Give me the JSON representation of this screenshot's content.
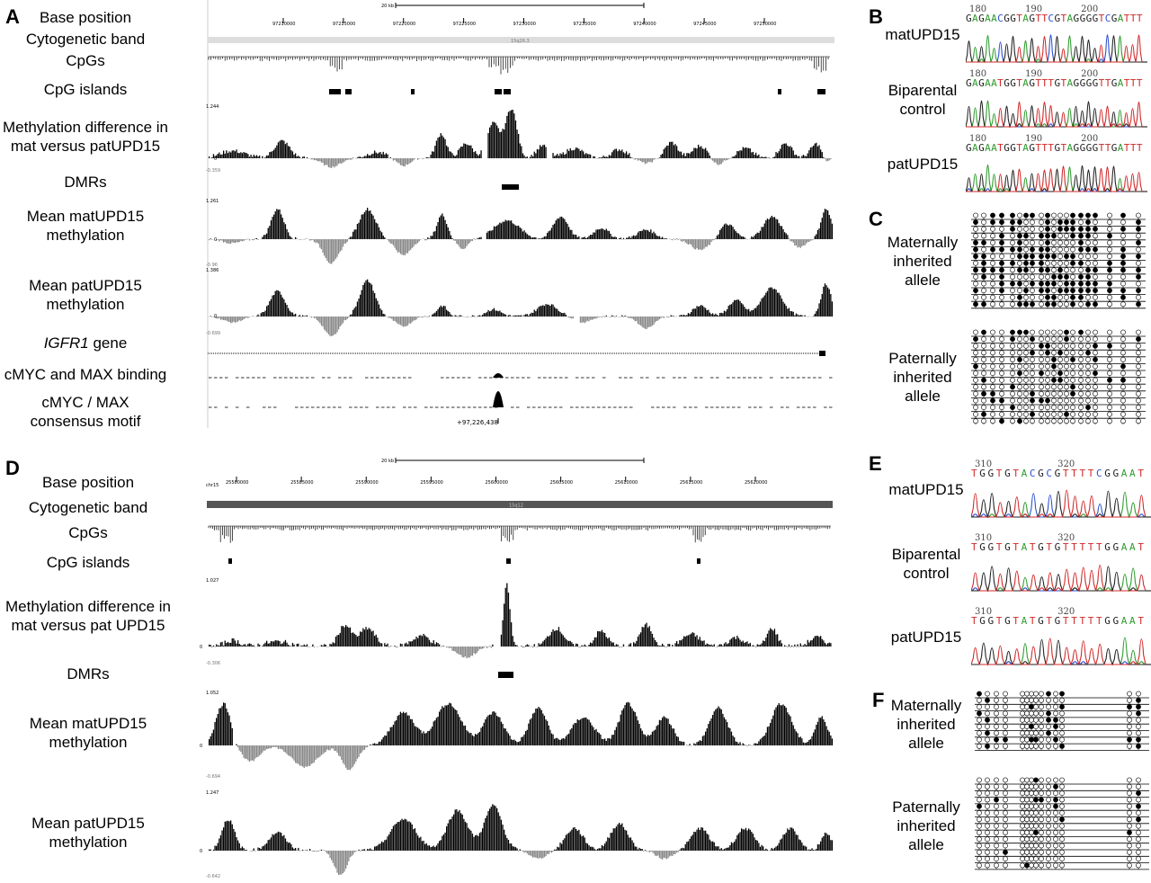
{
  "panels": {
    "A": "A",
    "B": "B",
    "C": "C",
    "D": "D",
    "E": "E",
    "F": "F"
  },
  "browserA": {
    "labels": {
      "base": "Base position",
      "band": "Cytogenetic band",
      "cpgs": "CpGs",
      "islands": "CpG islands",
      "diff1": "Methylation difference in",
      "diff2": "mat versus patUPD15",
      "dmrs": "DMRs",
      "mat1": "Mean matUPD15",
      "mat2": "methylation",
      "pat1": "Mean patUPD15",
      "pat2": "methylation",
      "gene_italic": "IGFR1",
      "gene_rest": " gene",
      "cmyc": "cMYC and MAX binding",
      "motif1": "cMYC / MAX",
      "motif2": "consensus motif"
    },
    "scale": "20 kb",
    "band_name": "15q26.3",
    "positions": [
      "97210000",
      "97215000",
      "97220000",
      "97225000",
      "97230000",
      "97235000",
      "97240000",
      "97245000",
      "97250000"
    ],
    "diff_max": "1.244",
    "diff_zero": "0",
    "diff_min": "-0.359",
    "mat_max": "1.261",
    "mat_zero": "0",
    "mat_min": "-0.96",
    "pat_max": "1.386",
    "pat_zero": "0",
    "pat_min": "-0.699",
    "coord": "+97,226,438"
  },
  "browserD": {
    "labels": {
      "base": "Base position",
      "band": "Cytogenetic band",
      "cpgs": "CpGs",
      "islands": "CpG islands",
      "diff1": "Methylation difference in",
      "diff2": "mat versus pat UPD15",
      "dmrs": "DMRs",
      "mat1": "Mean matUPD15",
      "mat2": "methylation",
      "pat1": "Mean patUPD15",
      "pat2": "methylation"
    },
    "scale": "20 kb",
    "chrom": "chr15",
    "band_name": "15q12",
    "positions": [
      "25580000",
      "25585000",
      "25590000",
      "25595000",
      "25600000",
      "25605000",
      "25610000",
      "25615000",
      "25620000"
    ],
    "diff_max": "1.027",
    "diff_zero": "0",
    "diff_min": "-0.306",
    "mat_max": "1.052",
    "mat_zero": "0",
    "mat_min": "-0.694",
    "pat_max": "1.247",
    "pat_zero": "0",
    "pat_min": "-0.642"
  },
  "panelB": {
    "traces": [
      {
        "label1": "matUPD15",
        "label2": "",
        "seq": "GAGAACGGTAGTTCGTAGGGGTCGATTT",
        "nums": [
          "180",
          "190",
          "200"
        ]
      },
      {
        "label1": "Biparental",
        "label2": "control",
        "seq": "GAGAATGGTAGTTTGTAGGGGTTGATTT",
        "nums": [
          "180",
          "190",
          "200"
        ]
      },
      {
        "label1": "patUPD15",
        "label2": "",
        "seq": "GAGAATGGTAGTTTGTAGGGGTTGATTT",
        "nums": [
          "180",
          "190",
          "200"
        ]
      }
    ]
  },
  "panelC": {
    "mat": [
      "Maternally",
      "inherited",
      "allele"
    ],
    "pat": [
      "Paternally",
      "inherited",
      "allele"
    ]
  },
  "panelE": {
    "traces": [
      {
        "label1": "matUPD15",
        "label2": "",
        "seq": "TGGTGTACGCGTTTTCGGAAT",
        "nums": [
          "310",
          "320"
        ]
      },
      {
        "label1": "Biparental",
        "label2": "control",
        "seq": "TGGTGTATGTGTTTTTGGAAT",
        "nums": [
          "310",
          "320"
        ]
      },
      {
        "label1": "patUPD15",
        "label2": "",
        "seq": "TGGTGTATGTGTTTTTGGAAT",
        "nums": [
          "310",
          "320"
        ]
      }
    ]
  },
  "panelF": {
    "mat": [
      "Maternally",
      "inherited",
      "allele"
    ],
    "pat": [
      "Paternally",
      "inherited",
      "allele"
    ]
  },
  "colors": {
    "bar": "#000000",
    "neg": "#888888",
    "A": "#2e9a2e",
    "C": "#2a4fd0",
    "G": "#222222",
    "T": "#d02a2a"
  }
}
